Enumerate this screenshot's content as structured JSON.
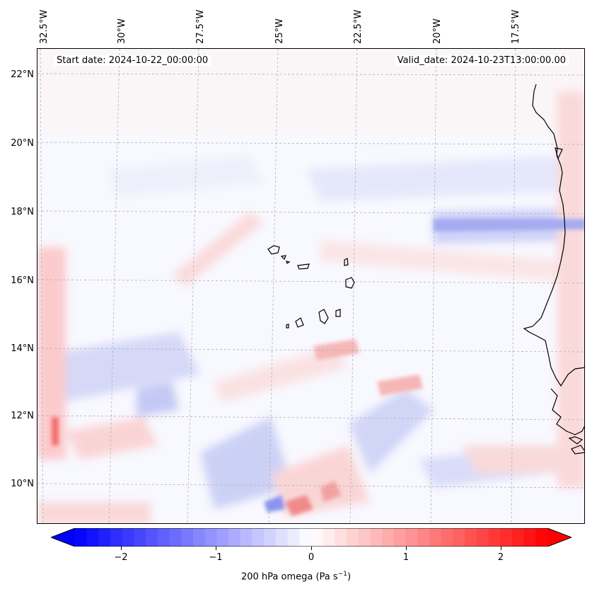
{
  "header": {
    "start_date": "Start date: 2024-10-22_00:00:00",
    "valid_date": "Valid_date: 2024-10-23T13:00:00.00"
  },
  "lat_labels": [
    "22°N",
    "20°N",
    "18°N",
    "16°N",
    "14°N",
    "12°N",
    "10°N"
  ],
  "lon_labels": [
    "32.5°W",
    "30°W",
    "27.5°W",
    "25°W",
    "22.5°W",
    "20°W",
    "17.5°W"
  ],
  "colorbar": {
    "ticks": [
      "−2",
      "−1",
      "0",
      "1",
      "2"
    ],
    "label_prefix": "200 hPa omega (Pa s",
    "label_exp": "−1",
    "label_suffix": ")",
    "range": [
      -2.75,
      2.75
    ],
    "neg_color": "#0000ff",
    "mid_color": "#ffffff",
    "pos_color": "#ff0000"
  },
  "map": {
    "projection": "mercator",
    "extent_lon": [
      -33,
      -15.5
    ],
    "extent_lat": [
      8.8,
      22.8
    ],
    "features": [
      "coastline-africa",
      "cape-verde-islands"
    ],
    "colors": {
      "coast": "#000000",
      "grid": "#b0b0b0"
    }
  }
}
